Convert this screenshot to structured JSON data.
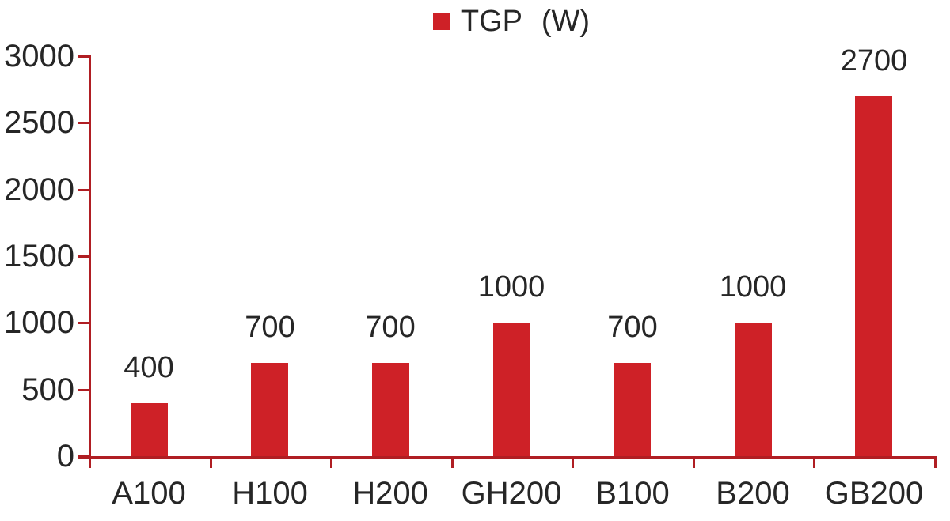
{
  "chart_data": {
    "type": "bar",
    "title": "",
    "legend": {
      "label": "TGP (W)",
      "position": "top-center"
    },
    "categories": [
      "A100",
      "H100",
      "H200",
      "GH200",
      "B100",
      "B200",
      "GB200"
    ],
    "values": [
      400,
      700,
      700,
      1000,
      700,
      1000,
      2700
    ],
    "value_labels": [
      "400",
      "700",
      "700",
      "1000",
      "700",
      "1000",
      "2700"
    ],
    "xlabel": "",
    "ylabel": "",
    "ylim": [
      0,
      3000
    ],
    "yticks": [
      0,
      500,
      1000,
      1500,
      2000,
      2500,
      3000
    ],
    "grid": false,
    "colors": {
      "bar": "#CE2127",
      "axis": "#B01E23",
      "text": "#262626",
      "background": "#FFFFFF"
    }
  }
}
